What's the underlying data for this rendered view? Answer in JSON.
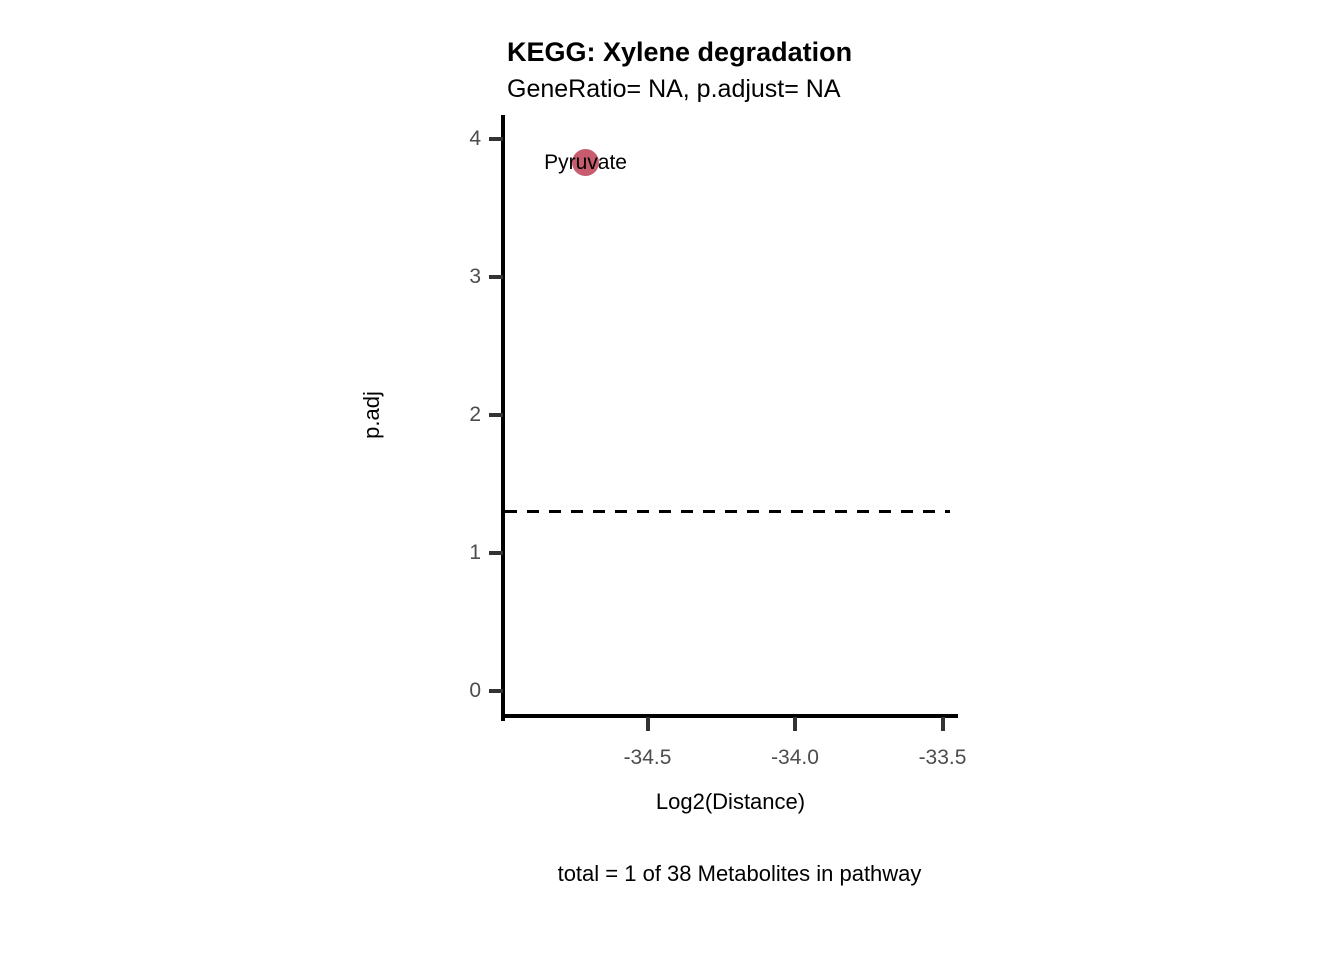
{
  "chart_data": {
    "type": "scatter",
    "title": "KEGG: Xylene degradation",
    "subtitle": "GeneRatio= NA, p.adjust= NA",
    "xlabel": "Log2(Distance)",
    "ylabel": "p.adj",
    "caption": "total = 1 of 38 Metabolites in pathway",
    "x_ticks": [
      "-34.5",
      "-34.0",
      "-33.5"
    ],
    "y_ticks": [
      "4",
      "3",
      "2",
      "1",
      "0"
    ],
    "xlim": [
      -35.0,
      -33.45
    ],
    "ylim": [
      -0.19,
      4.17
    ],
    "grid": false,
    "legend": false,
    "points": [
      {
        "label": "Pyruvate",
        "x": -34.71,
        "y": 3.83,
        "color": "#C65C6E"
      }
    ],
    "threshold_line": {
      "y": 1.3,
      "style": "dashed",
      "color": "#000000"
    }
  },
  "colors": {
    "background": "#FFFFFF",
    "axis_line": "#000000",
    "tick_mark": "#333333",
    "tick_label": "#4D4D4D",
    "text": "#000000",
    "point": "#C65C6E"
  }
}
